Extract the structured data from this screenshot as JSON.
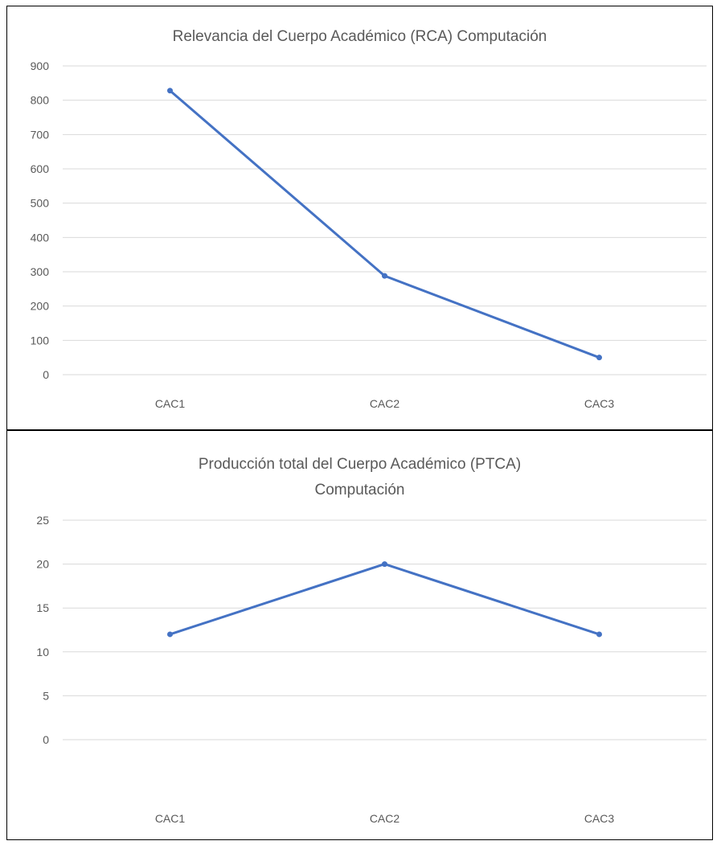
{
  "chart_data": [
    {
      "type": "line",
      "title": "Relevancia del Cuerpo Académico (RCA)  Computación",
      "xlabel": "",
      "ylabel": "",
      "categories": [
        "CAC1",
        "CAC2",
        "CAC3"
      ],
      "series": [
        {
          "values": [
            828,
            288,
            50
          ]
        }
      ],
      "ylim": [
        0,
        900
      ],
      "yticks": [
        0,
        100,
        200,
        300,
        400,
        500,
        600,
        700,
        800,
        900
      ],
      "grid": true,
      "color": "#4472c4"
    },
    {
      "type": "line",
      "title": "Producción total del Cuerpo Académico (PTCA) Computación",
      "title_lines": [
        "Producción total del Cuerpo Académico (PTCA)",
        "Computación"
      ],
      "xlabel": "",
      "ylabel": "",
      "categories": [
        "CAC1",
        "CAC2",
        "CAC3"
      ],
      "series": [
        {
          "values": [
            12,
            20,
            12
          ]
        }
      ],
      "ylim": [
        0,
        25
      ],
      "yticks": [
        0,
        5,
        10,
        15,
        20,
        25
      ],
      "grid": true,
      "color": "#4472c4"
    }
  ]
}
